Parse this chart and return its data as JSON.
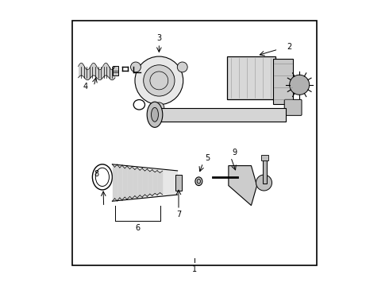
{
  "title": "",
  "background_color": "#ffffff",
  "border_color": "#000000",
  "line_color": "#000000",
  "text_color": "#000000",
  "fig_width": 4.9,
  "fig_height": 3.6,
  "dpi": 100,
  "border": [
    0.07,
    0.07,
    0.93,
    0.93
  ]
}
